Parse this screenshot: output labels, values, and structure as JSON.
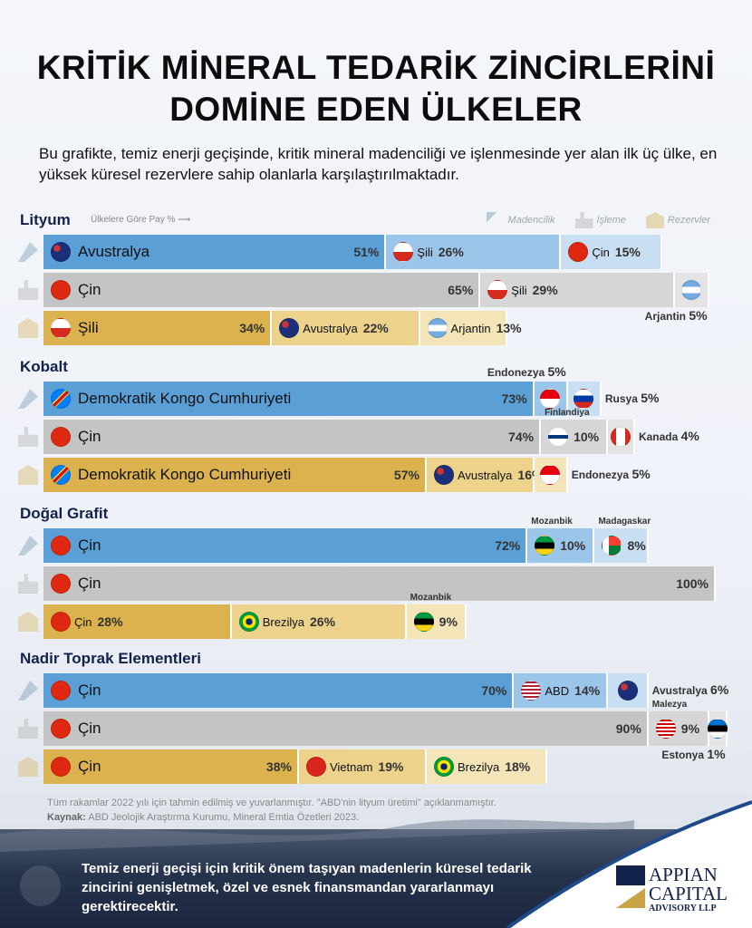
{
  "title": "KRİTİK MİNERAL TEDARİK ZİNCİRLERİNİ DOMİNE EDEN ÜLKELER",
  "subtitle": "Bu grafikte, temiz enerji geçişinde, kritik mineral madenciliği ve işlenmesinde yer alan ilk üç ülke, en yüksek küresel rezervlere sahip olanlarla karşılaştırılmaktadır.",
  "axis_note": "Ülkelere Göre Pay %",
  "legend": {
    "mining": "Madencilik",
    "processing": "İşleme",
    "reserves": "Rezervler"
  },
  "colors": {
    "mining": [
      "#5a9fd6",
      "#9cc5ea",
      "#c8def2"
    ],
    "processing": [
      "#c4c4c4",
      "#d6d6d6",
      "#e4e4e4"
    ],
    "reserves": [
      "#dbb24d",
      "#ecd28b",
      "#f4e5b8"
    ]
  },
  "chart_data": {
    "type": "bar",
    "stacked": true,
    "orientation": "horizontal",
    "unit": "%",
    "xlim": [
      0,
      100
    ],
    "sections": [
      {
        "title": "Lityum",
        "rows": [
          {
            "stage": "mining",
            "segments": [
              {
                "country": "Avustralya",
                "flag": "au",
                "value": 51
              },
              {
                "country": "Şili",
                "flag": "cl",
                "value": 26
              },
              {
                "country": "Çin",
                "flag": "cn",
                "value": 15
              }
            ]
          },
          {
            "stage": "processing",
            "segments": [
              {
                "country": "Çin",
                "flag": "cn",
                "value": 65
              },
              {
                "country": "Şili",
                "flag": "cl",
                "value": 29
              },
              {
                "country": "Arjantin",
                "flag": "ar",
                "value": 5
              }
            ]
          },
          {
            "stage": "reserves",
            "segments": [
              {
                "country": "Şili",
                "flag": "cl",
                "value": 34
              },
              {
                "country": "Avustralya",
                "flag": "au",
                "value": 22
              },
              {
                "country": "Arjantin",
                "flag": "ar",
                "value": 13
              }
            ]
          }
        ]
      },
      {
        "title": "Kobalt",
        "rows": [
          {
            "stage": "mining",
            "segments": [
              {
                "country": "Demokratik Kongo Cumhuriyeti",
                "flag": "cd",
                "value": 73
              },
              {
                "country": "Endonezya",
                "flag": "id",
                "value": 5
              },
              {
                "country": "Rusya",
                "flag": "ru",
                "value": 5
              }
            ]
          },
          {
            "stage": "processing",
            "segments": [
              {
                "country": "Çin",
                "flag": "cn",
                "value": 74
              },
              {
                "country": "Finlandiya",
                "flag": "fi",
                "value": 10
              },
              {
                "country": "Kanada",
                "flag": "ca",
                "value": 4
              }
            ]
          },
          {
            "stage": "reserves",
            "segments": [
              {
                "country": "Demokratik Kongo Cumhuriyeti",
                "flag": "cd",
                "value": 57
              },
              {
                "country": "Avustralya",
                "flag": "au",
                "value": 16
              },
              {
                "country": "Endonezya",
                "flag": "id",
                "value": 5
              }
            ]
          }
        ]
      },
      {
        "title": "Doğal Grafit",
        "rows": [
          {
            "stage": "mining",
            "segments": [
              {
                "country": "Çin",
                "flag": "cn",
                "value": 72
              },
              {
                "country": "Mozanbik",
                "flag": "mz",
                "value": 10
              },
              {
                "country": "Madagaskar",
                "flag": "mg",
                "value": 8
              }
            ]
          },
          {
            "stage": "processing",
            "segments": [
              {
                "country": "Çin",
                "flag": "cn",
                "value": 100
              }
            ]
          },
          {
            "stage": "reserves",
            "segments": [
              {
                "country": "Çin",
                "flag": "cn",
                "value": 28
              },
              {
                "country": "Brezilya",
                "flag": "br",
                "value": 26
              },
              {
                "country": "Mozanbik",
                "flag": "mz",
                "value": 9
              }
            ]
          }
        ]
      },
      {
        "title": "Nadir Toprak Elementleri",
        "rows": [
          {
            "stage": "mining",
            "segments": [
              {
                "country": "Çin",
                "flag": "cn",
                "value": 70
              },
              {
                "country": "ABD",
                "flag": "us",
                "value": 14
              },
              {
                "country": "Avustralya",
                "flag": "au",
                "value": 6
              }
            ]
          },
          {
            "stage": "processing",
            "segments": [
              {
                "country": "Çin",
                "flag": "cn",
                "value": 90
              },
              {
                "country": "Malezya",
                "flag": "my",
                "value": 9
              },
              {
                "country": "Estonya",
                "flag": "ee",
                "value": 1
              }
            ]
          },
          {
            "stage": "reserves",
            "segments": [
              {
                "country": "Çin",
                "flag": "cn",
                "value": 38
              },
              {
                "country": "Vietnam",
                "flag": "vn",
                "value": 19
              },
              {
                "country": "Brezilya",
                "flag": "br",
                "value": 18
              }
            ]
          }
        ]
      }
    ]
  },
  "footnote": {
    "note": "Tüm rakamlar 2022 yılı için tahmin edilmiş ve yuvarlanmıştır. \"ABD'nin lityum üretimi\" açıklanmamıştır.",
    "source_label": "Kaynak:",
    "source": "ABD Jeolojik Araştırma Kurumu, Mineral Emtia Özetleri 2023."
  },
  "bottom_text": "Temiz enerji geçişi için kritik önem taşıyan madenlerin küresel tedarik zincirini genişletmek, özel ve esnek finansmandan yararlanmayı gerektirecektir.",
  "logo": {
    "line1": "APPIAN",
    "line2": "CAPITAL",
    "line3": "ADVISORY LLP"
  }
}
